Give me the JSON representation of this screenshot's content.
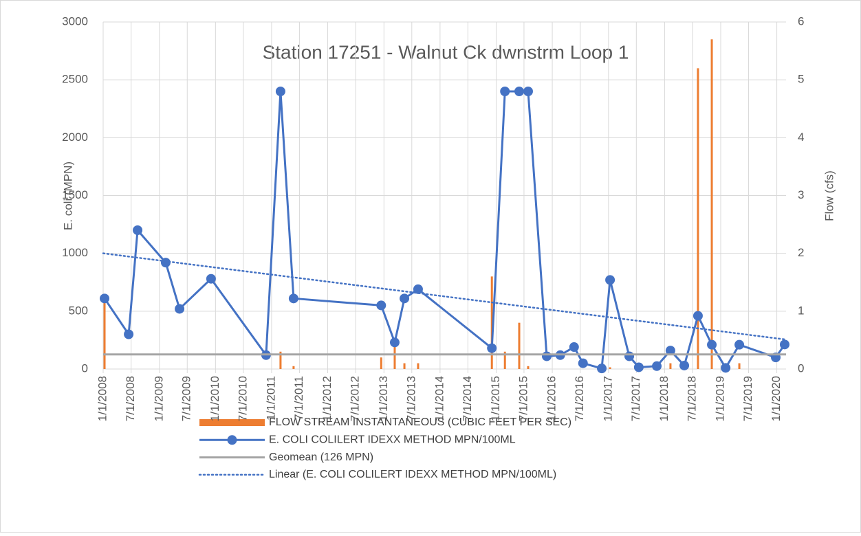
{
  "chart_data": {
    "type": "combo",
    "title": "Station 17251 - Walnut Ck dwnstrm Loop 1",
    "y_label": "E. coli (MPN)",
    "y2_label": "Flow (cfs)",
    "xlim": [
      "2008-01-01",
      "2020-03-01"
    ],
    "xticks": [
      {
        "value": "2008-01-01",
        "label": "1/1/2008"
      },
      {
        "value": "2008-07-01",
        "label": "7/1/2008"
      },
      {
        "value": "2009-01-01",
        "label": "1/1/2009"
      },
      {
        "value": "2009-07-01",
        "label": "7/1/2009"
      },
      {
        "value": "2010-01-01",
        "label": "1/1/2010"
      },
      {
        "value": "2010-07-01",
        "label": "7/1/2010"
      },
      {
        "value": "2011-01-01",
        "label": "1/1/2011"
      },
      {
        "value": "2011-07-01",
        "label": "7/1/2011"
      },
      {
        "value": "2012-01-01",
        "label": "1/1/2012"
      },
      {
        "value": "2012-07-01",
        "label": "7/1/2012"
      },
      {
        "value": "2013-01-01",
        "label": "1/1/2013"
      },
      {
        "value": "2013-07-01",
        "label": "7/1/2013"
      },
      {
        "value": "2014-01-01",
        "label": "1/1/2014"
      },
      {
        "value": "2014-07-01",
        "label": "7/1/2014"
      },
      {
        "value": "2015-01-01",
        "label": "1/1/2015"
      },
      {
        "value": "2015-07-01",
        "label": "7/1/2015"
      },
      {
        "value": "2016-01-01",
        "label": "1/1/2016"
      },
      {
        "value": "2016-07-01",
        "label": "7/1/2016"
      },
      {
        "value": "2017-01-01",
        "label": "1/1/2017"
      },
      {
        "value": "2017-07-01",
        "label": "7/1/2017"
      },
      {
        "value": "2018-01-01",
        "label": "1/1/2018"
      },
      {
        "value": "2018-07-01",
        "label": "7/1/2018"
      },
      {
        "value": "2019-01-01",
        "label": "1/1/2019"
      },
      {
        "value": "2019-07-01",
        "label": "7/1/2019"
      },
      {
        "value": "2020-01-01",
        "label": "1/1/2020"
      }
    ],
    "ylim": [
      0,
      3000
    ],
    "yticks": [
      0,
      500,
      1000,
      1500,
      2000,
      2500,
      3000
    ],
    "y2lim": [
      0,
      6
    ],
    "y2ticks": [
      0,
      1,
      2,
      3,
      4,
      5,
      6
    ],
    "grid": true,
    "legend": "bottom",
    "series": [
      {
        "name": "FLOW STREAM INSTANTANEOUS (CUBIC FEET PER SEC)",
        "type": "bar",
        "axis": "y2",
        "color": "#ed7d31",
        "x": [
          "2008-01-10",
          "2011-02-28",
          "2011-05-24",
          "2012-12-14",
          "2013-03-12",
          "2013-05-14",
          "2013-08-11",
          "2014-12-04",
          "2015-02-27",
          "2015-05-31",
          "2015-07-28",
          "2017-01-11",
          "2018-02-08",
          "2018-08-06",
          "2018-11-04",
          "2019-05-02"
        ],
        "values": [
          1.2,
          0.3,
          0.05,
          0.2,
          0.4,
          0.1,
          0.1,
          1.6,
          0.3,
          0.8,
          0.05,
          0.03,
          0.1,
          5.2,
          5.7,
          0.1
        ]
      },
      {
        "name": "E. COLI COLILERT IDEXX METHOD MPN/100ML",
        "type": "line",
        "marker": true,
        "color": "#4472c4",
        "x": [
          "2008-01-10",
          "2008-06-15",
          "2008-08-12",
          "2009-02-11",
          "2009-05-12",
          "2009-12-03",
          "2010-11-26",
          "2011-02-28",
          "2011-05-24",
          "2012-12-14",
          "2013-03-12",
          "2013-05-14",
          "2013-08-11",
          "2014-12-04",
          "2015-02-27",
          "2015-05-31",
          "2015-07-28",
          "2015-11-26",
          "2016-02-22",
          "2016-05-22",
          "2016-07-19",
          "2016-11-18",
          "2017-01-11",
          "2017-05-16",
          "2017-07-17",
          "2017-11-11",
          "2018-02-08",
          "2018-05-09",
          "2018-08-06",
          "2018-11-04",
          "2019-02-02",
          "2019-05-02",
          "2019-12-25",
          "2020-02-21"
        ],
        "values": [
          610,
          300,
          1200,
          920,
          520,
          780,
          120,
          2400,
          610,
          550,
          230,
          610,
          690,
          180,
          2400,
          2400,
          2400,
          110,
          120,
          190,
          50,
          5,
          770,
          110,
          15,
          25,
          160,
          30,
          460,
          210,
          10,
          210,
          100,
          212
        ]
      },
      {
        "name": "Geomean (126 MPN)",
        "type": "line",
        "color": "#a5a5a5",
        "x": [
          "2008-01-01",
          "2020-03-01"
        ],
        "values": [
          126,
          126
        ]
      },
      {
        "name": "Linear (E. COLI COLILERT IDEXX METHOD MPN/100ML)",
        "type": "line",
        "dashed": true,
        "color": "#4472c4",
        "x": [
          "2008-01-01",
          "2020-03-01"
        ],
        "values": [
          1000,
          255
        ]
      }
    ]
  }
}
